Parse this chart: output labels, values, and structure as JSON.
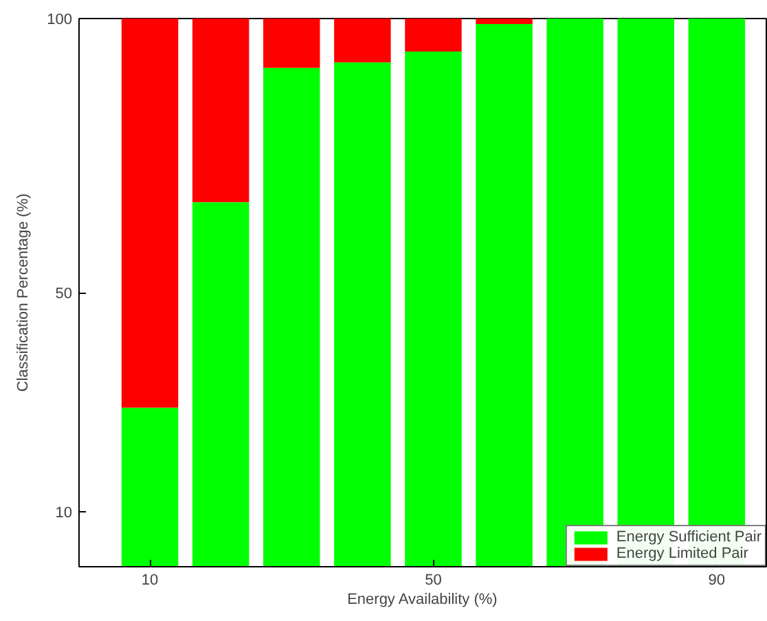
{
  "chart_data": {
    "type": "bar",
    "stacked": true,
    "xlabel": "Energy Availability (%)",
    "ylabel": "Classification Percentage (%)",
    "x": [
      10,
      20,
      30,
      40,
      50,
      60,
      70,
      80,
      90
    ],
    "series": [
      {
        "name": "Energy Sufficient Pair",
        "color": "#00ff00",
        "values": [
          29,
          66.5,
          91,
          92,
          94,
          99,
          100,
          100,
          100
        ]
      },
      {
        "name": "Energy Limited Pair",
        "color": "#ff0000",
        "values": [
          71,
          33.5,
          9,
          8,
          6,
          1,
          0,
          0,
          0
        ]
      }
    ],
    "xlim": [
      0,
      97
    ],
    "ylim": [
      0,
      100
    ],
    "xticks": [
      10,
      50,
      90
    ],
    "yticks": [
      10,
      50,
      100
    ],
    "grid": false,
    "legend": "bottom right"
  }
}
